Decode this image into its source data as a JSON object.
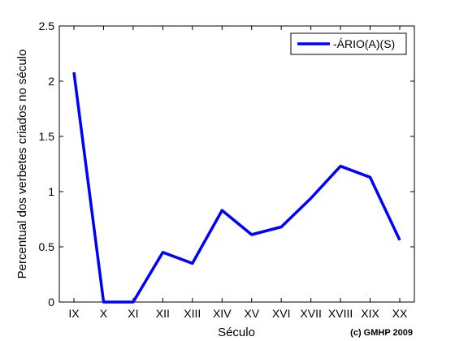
{
  "chart_data": {
    "type": "line",
    "categories": [
      "IX",
      "X",
      "XI",
      "XII",
      "XIII",
      "XIV",
      "XV",
      "XVI",
      "XVII",
      "XVIII",
      "XIX",
      "XX"
    ],
    "series": [
      {
        "name": "-ÁRIO(A)(S)",
        "values": [
          2.08,
          0.0,
          0.0,
          0.45,
          0.35,
          0.83,
          0.61,
          0.68,
          0.94,
          1.23,
          1.13,
          0.56
        ],
        "color": "#0000ff"
      }
    ],
    "xlabel": "Século",
    "ylabel": "Percentual dos verbetes criados no século",
    "ylim": [
      0,
      2.5
    ],
    "yticks": [
      "0",
      "0.5",
      "1",
      "1.5",
      "2",
      "2.5"
    ],
    "ytick_values": [
      0,
      0.5,
      1,
      1.5,
      2,
      2.5
    ],
    "grid": false,
    "legend_position": "top-right",
    "annotation": "(c) GMHP 2009"
  }
}
